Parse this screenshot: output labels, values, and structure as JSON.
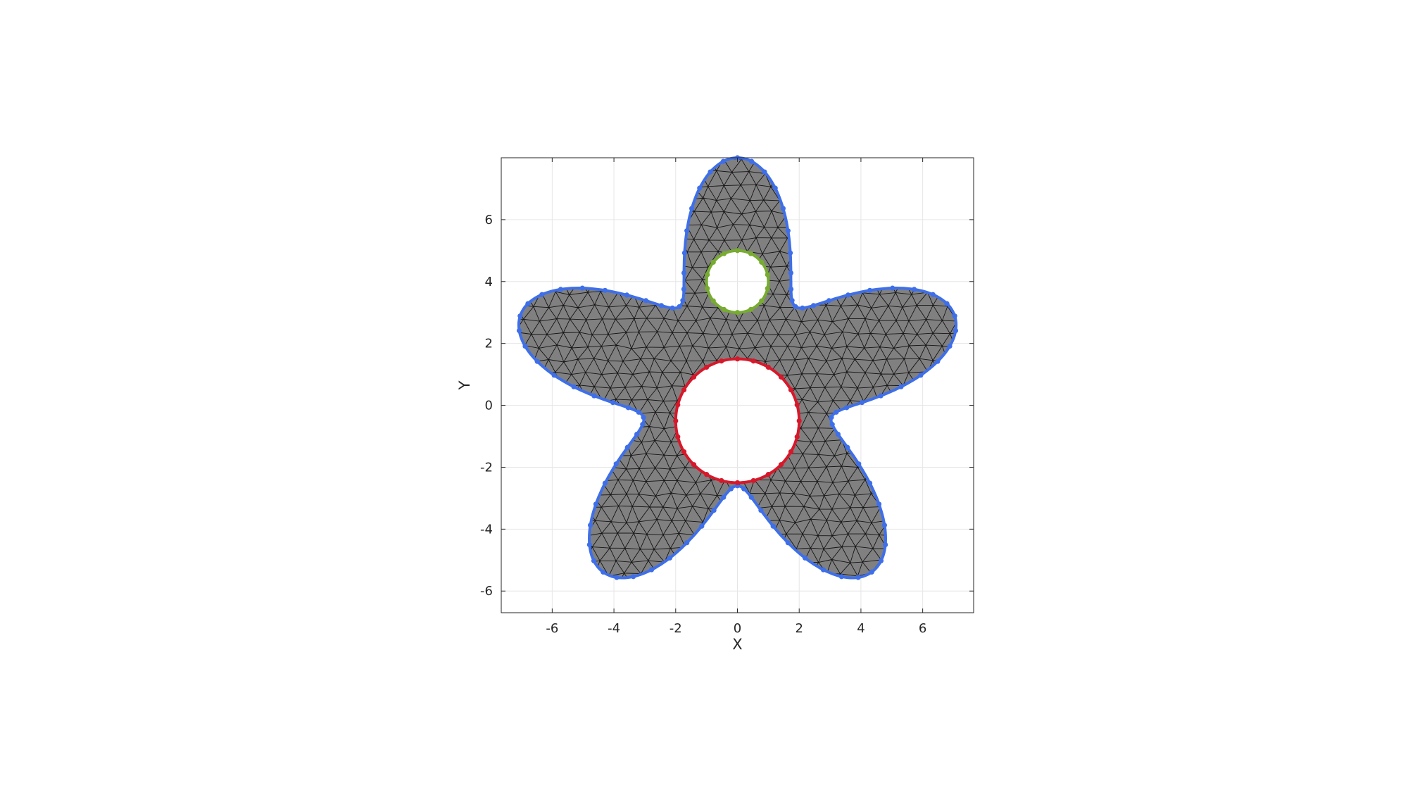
{
  "chart_data": {
    "type": "mesh",
    "xlabel": "X",
    "ylabel": "Y",
    "xlim": [
      -7.65,
      7.65
    ],
    "ylim": [
      -6.7,
      8.0
    ],
    "xticks": [
      "-6",
      "-4",
      "-2",
      "0",
      "2",
      "4",
      "6"
    ],
    "yticks": [
      "-6",
      "-4",
      "-2",
      "0",
      "2",
      "4",
      "6"
    ],
    "grid": true,
    "box": true,
    "equal_aspect": true,
    "colors": {
      "face": "#808080",
      "edge": "#000000",
      "outer_boundary": "#3f6fe8",
      "inner_hole_large": "#d7182a",
      "inner_hole_small": "#77ac30",
      "grid": "#e6e6e6",
      "axes": "#262626"
    },
    "regions": {
      "outer_boundary": {
        "shape": "five-lobed star",
        "center": [
          0,
          0.6
        ],
        "base_radius": 5.3,
        "lobe_amplitude": 2.1,
        "lobes": 5,
        "first_lobe_angle_deg": 90,
        "boundary_nodes": 100
      },
      "inner_hole_large": {
        "shape": "circle",
        "center": [
          0,
          -0.5
        ],
        "radius": 2.0,
        "boundary_nodes": 24
      },
      "inner_hole_small": {
        "shape": "circle",
        "center": [
          0,
          4.0
        ],
        "radius": 1.0,
        "boundary_nodes": 14
      }
    },
    "mesh": {
      "element_type": "triangle",
      "approx_edge_length": 0.5
    }
  }
}
